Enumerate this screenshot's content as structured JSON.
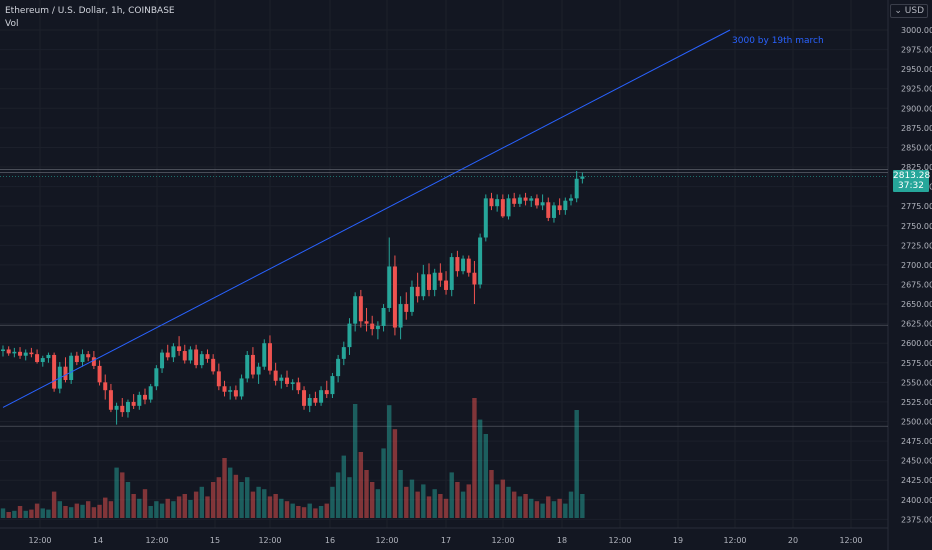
{
  "header": {
    "symbol_line": "Ethereum / U.S. Dollar, 1h, COINBASE",
    "volume_label": "Vol",
    "currency_button": "USD"
  },
  "annotation": {
    "text": "3000 by 19th march"
  },
  "price_tag": {
    "price": "2813.28",
    "countdown": "37:32"
  },
  "colors": {
    "up": "#26a69a",
    "down": "#ef5350",
    "trendline": "#2962ff",
    "background": "#131722"
  },
  "chart_data": {
    "type": "candlestick",
    "title": "Ethereum / U.S. Dollar, 1h, COINBASE",
    "timeframe": "1h",
    "y_axis": {
      "range": [
        2360,
        3025
      ],
      "ticks": [
        "3000.00",
        "2975.00",
        "2950.00",
        "2925.00",
        "2900.00",
        "2875.00",
        "2850.00",
        "2825.00",
        "2800.00",
        "2775.00",
        "2750.00",
        "2725.00",
        "2700.00",
        "2675.00",
        "2650.00",
        "2625.00",
        "2600.00",
        "2575.00",
        "2550.00",
        "2525.00",
        "2500.00",
        "2475.00",
        "2450.00",
        "2425.00",
        "2400.00",
        "2375.00"
      ]
    },
    "x_axis": {
      "tick_labels": [
        "12:00",
        "14",
        "12:00",
        "15",
        "12:00",
        "16",
        "12:00",
        "17",
        "12:00",
        "18",
        "12:00",
        "19",
        "12:00",
        "20",
        "12:00"
      ]
    },
    "horizontal_levels": [
      2822,
      2818,
      2623,
      2494
    ],
    "trendline": {
      "from": [
        0,
        2518
      ],
      "to": [
        128,
        3000
      ]
    },
    "volume_scale_max": 100,
    "candles": [
      {
        "o": 2590,
        "h": 2597,
        "l": 2583,
        "c": 2592,
        "v": 8
      },
      {
        "o": 2592,
        "h": 2596,
        "l": 2584,
        "c": 2587,
        "v": 5
      },
      {
        "o": 2587,
        "h": 2594,
        "l": 2582,
        "c": 2589,
        "v": 6
      },
      {
        "o": 2589,
        "h": 2595,
        "l": 2580,
        "c": 2584,
        "v": 10
      },
      {
        "o": 2584,
        "h": 2592,
        "l": 2578,
        "c": 2588,
        "v": 6
      },
      {
        "o": 2588,
        "h": 2594,
        "l": 2582,
        "c": 2586,
        "v": 7
      },
      {
        "o": 2586,
        "h": 2592,
        "l": 2574,
        "c": 2576,
        "v": 12
      },
      {
        "o": 2576,
        "h": 2584,
        "l": 2570,
        "c": 2581,
        "v": 8
      },
      {
        "o": 2581,
        "h": 2588,
        "l": 2575,
        "c": 2585,
        "v": 7
      },
      {
        "o": 2585,
        "h": 2588,
        "l": 2538,
        "c": 2542,
        "v": 22
      },
      {
        "o": 2542,
        "h": 2576,
        "l": 2536,
        "c": 2570,
        "v": 14
      },
      {
        "o": 2570,
        "h": 2582,
        "l": 2550,
        "c": 2553,
        "v": 10
      },
      {
        "o": 2553,
        "h": 2588,
        "l": 2548,
        "c": 2584,
        "v": 9
      },
      {
        "o": 2584,
        "h": 2589,
        "l": 2572,
        "c": 2576,
        "v": 12
      },
      {
        "o": 2576,
        "h": 2592,
        "l": 2570,
        "c": 2586,
        "v": 11
      },
      {
        "o": 2586,
        "h": 2590,
        "l": 2577,
        "c": 2582,
        "v": 14
      },
      {
        "o": 2582,
        "h": 2590,
        "l": 2567,
        "c": 2571,
        "v": 9
      },
      {
        "o": 2571,
        "h": 2578,
        "l": 2546,
        "c": 2550,
        "v": 11
      },
      {
        "o": 2550,
        "h": 2560,
        "l": 2528,
        "c": 2540,
        "v": 17
      },
      {
        "o": 2540,
        "h": 2548,
        "l": 2512,
        "c": 2515,
        "v": 14
      },
      {
        "o": 2515,
        "h": 2524,
        "l": 2496,
        "c": 2520,
        "v": 42
      },
      {
        "o": 2520,
        "h": 2530,
        "l": 2506,
        "c": 2512,
        "v": 38
      },
      {
        "o": 2512,
        "h": 2528,
        "l": 2505,
        "c": 2525,
        "v": 30
      },
      {
        "o": 2525,
        "h": 2535,
        "l": 2516,
        "c": 2520,
        "v": 20
      },
      {
        "o": 2520,
        "h": 2538,
        "l": 2515,
        "c": 2534,
        "v": 16
      },
      {
        "o": 2534,
        "h": 2542,
        "l": 2522,
        "c": 2528,
        "v": 24
      },
      {
        "o": 2528,
        "h": 2548,
        "l": 2524,
        "c": 2545,
        "v": 10
      },
      {
        "o": 2545,
        "h": 2572,
        "l": 2540,
        "c": 2568,
        "v": 14
      },
      {
        "o": 2568,
        "h": 2592,
        "l": 2562,
        "c": 2588,
        "v": 12
      },
      {
        "o": 2588,
        "h": 2598,
        "l": 2578,
        "c": 2582,
        "v": 16
      },
      {
        "o": 2582,
        "h": 2600,
        "l": 2576,
        "c": 2596,
        "v": 14
      },
      {
        "o": 2596,
        "h": 2609,
        "l": 2584,
        "c": 2590,
        "v": 18
      },
      {
        "o": 2590,
        "h": 2598,
        "l": 2574,
        "c": 2578,
        "v": 20
      },
      {
        "o": 2578,
        "h": 2596,
        "l": 2574,
        "c": 2592,
        "v": 15
      },
      {
        "o": 2592,
        "h": 2598,
        "l": 2568,
        "c": 2572,
        "v": 22
      },
      {
        "o": 2572,
        "h": 2590,
        "l": 2568,
        "c": 2586,
        "v": 26
      },
      {
        "o": 2586,
        "h": 2592,
        "l": 2575,
        "c": 2580,
        "v": 18
      },
      {
        "o": 2580,
        "h": 2586,
        "l": 2560,
        "c": 2564,
        "v": 30
      },
      {
        "o": 2564,
        "h": 2574,
        "l": 2540,
        "c": 2545,
        "v": 34
      },
      {
        "o": 2545,
        "h": 2552,
        "l": 2532,
        "c": 2538,
        "v": 50
      },
      {
        "o": 2538,
        "h": 2545,
        "l": 2528,
        "c": 2540,
        "v": 42
      },
      {
        "o": 2540,
        "h": 2546,
        "l": 2528,
        "c": 2532,
        "v": 36
      },
      {
        "o": 2532,
        "h": 2560,
        "l": 2528,
        "c": 2555,
        "v": 30
      },
      {
        "o": 2555,
        "h": 2590,
        "l": 2550,
        "c": 2585,
        "v": 34
      },
      {
        "o": 2585,
        "h": 2595,
        "l": 2555,
        "c": 2560,
        "v": 22
      },
      {
        "o": 2560,
        "h": 2575,
        "l": 2548,
        "c": 2570,
        "v": 26
      },
      {
        "o": 2570,
        "h": 2605,
        "l": 2566,
        "c": 2600,
        "v": 24
      },
      {
        "o": 2600,
        "h": 2610,
        "l": 2560,
        "c": 2565,
        "v": 18
      },
      {
        "o": 2565,
        "h": 2575,
        "l": 2546,
        "c": 2552,
        "v": 20
      },
      {
        "o": 2552,
        "h": 2560,
        "l": 2542,
        "c": 2556,
        "v": 16
      },
      {
        "o": 2556,
        "h": 2565,
        "l": 2544,
        "c": 2548,
        "v": 14
      },
      {
        "o": 2548,
        "h": 2554,
        "l": 2540,
        "c": 2550,
        "v": 12
      },
      {
        "o": 2550,
        "h": 2556,
        "l": 2535,
        "c": 2540,
        "v": 10
      },
      {
        "o": 2540,
        "h": 2545,
        "l": 2515,
        "c": 2520,
        "v": 9
      },
      {
        "o": 2520,
        "h": 2535,
        "l": 2512,
        "c": 2530,
        "v": 12
      },
      {
        "o": 2530,
        "h": 2538,
        "l": 2520,
        "c": 2524,
        "v": 8
      },
      {
        "o": 2524,
        "h": 2545,
        "l": 2520,
        "c": 2540,
        "v": 10
      },
      {
        "o": 2540,
        "h": 2552,
        "l": 2530,
        "c": 2535,
        "v": 12
      },
      {
        "o": 2535,
        "h": 2562,
        "l": 2530,
        "c": 2558,
        "v": 26
      },
      {
        "o": 2558,
        "h": 2585,
        "l": 2550,
        "c": 2580,
        "v": 38
      },
      {
        "o": 2580,
        "h": 2602,
        "l": 2572,
        "c": 2595,
        "v": 52
      },
      {
        "o": 2595,
        "h": 2632,
        "l": 2585,
        "c": 2625,
        "v": 34
      },
      {
        "o": 2625,
        "h": 2665,
        "l": 2615,
        "c": 2660,
        "v": 95
      },
      {
        "o": 2660,
        "h": 2668,
        "l": 2620,
        "c": 2628,
        "v": 55
      },
      {
        "o": 2628,
        "h": 2645,
        "l": 2615,
        "c": 2625,
        "v": 40
      },
      {
        "o": 2625,
        "h": 2635,
        "l": 2610,
        "c": 2618,
        "v": 30
      },
      {
        "o": 2618,
        "h": 2628,
        "l": 2605,
        "c": 2622,
        "v": 24
      },
      {
        "o": 2622,
        "h": 2650,
        "l": 2615,
        "c": 2645,
        "v": 58
      },
      {
        "o": 2645,
        "h": 2735,
        "l": 2640,
        "c": 2698,
        "v": 94
      },
      {
        "o": 2698,
        "h": 2712,
        "l": 2610,
        "c": 2620,
        "v": 74
      },
      {
        "o": 2620,
        "h": 2660,
        "l": 2605,
        "c": 2650,
        "v": 40
      },
      {
        "o": 2650,
        "h": 2665,
        "l": 2630,
        "c": 2640,
        "v": 26
      },
      {
        "o": 2640,
        "h": 2680,
        "l": 2635,
        "c": 2672,
        "v": 32
      },
      {
        "o": 2672,
        "h": 2690,
        "l": 2652,
        "c": 2660,
        "v": 22
      },
      {
        "o": 2660,
        "h": 2700,
        "l": 2655,
        "c": 2688,
        "v": 28
      },
      {
        "o": 2688,
        "h": 2702,
        "l": 2660,
        "c": 2668,
        "v": 18
      },
      {
        "o": 2668,
        "h": 2695,
        "l": 2660,
        "c": 2690,
        "v": 24
      },
      {
        "o": 2690,
        "h": 2702,
        "l": 2672,
        "c": 2680,
        "v": 20
      },
      {
        "o": 2680,
        "h": 2692,
        "l": 2662,
        "c": 2668,
        "v": 16
      },
      {
        "o": 2668,
        "h": 2715,
        "l": 2660,
        "c": 2710,
        "v": 38
      },
      {
        "o": 2710,
        "h": 2718,
        "l": 2685,
        "c": 2692,
        "v": 30
      },
      {
        "o": 2692,
        "h": 2712,
        "l": 2688,
        "c": 2708,
        "v": 22
      },
      {
        "o": 2708,
        "h": 2712,
        "l": 2685,
        "c": 2690,
        "v": 28
      },
      {
        "o": 2690,
        "h": 2705,
        "l": 2650,
        "c": 2675,
        "v": 100
      },
      {
        "o": 2675,
        "h": 2740,
        "l": 2670,
        "c": 2735,
        "v": 82
      },
      {
        "o": 2735,
        "h": 2790,
        "l": 2730,
        "c": 2785,
        "v": 70
      },
      {
        "o": 2785,
        "h": 2792,
        "l": 2770,
        "c": 2775,
        "v": 40
      },
      {
        "o": 2775,
        "h": 2790,
        "l": 2768,
        "c": 2784,
        "v": 28
      },
      {
        "o": 2784,
        "h": 2790,
        "l": 2760,
        "c": 2762,
        "v": 32
      },
      {
        "o": 2762,
        "h": 2790,
        "l": 2758,
        "c": 2785,
        "v": 26
      },
      {
        "o": 2785,
        "h": 2792,
        "l": 2774,
        "c": 2778,
        "v": 22
      },
      {
        "o": 2778,
        "h": 2790,
        "l": 2774,
        "c": 2786,
        "v": 18
      },
      {
        "o": 2786,
        "h": 2792,
        "l": 2776,
        "c": 2782,
        "v": 20
      },
      {
        "o": 2782,
        "h": 2788,
        "l": 2774,
        "c": 2785,
        "v": 16
      },
      {
        "o": 2785,
        "h": 2790,
        "l": 2772,
        "c": 2776,
        "v": 14
      },
      {
        "o": 2776,
        "h": 2790,
        "l": 2770,
        "c": 2780,
        "v": 12
      },
      {
        "o": 2780,
        "h": 2786,
        "l": 2756,
        "c": 2760,
        "v": 18
      },
      {
        "o": 2760,
        "h": 2780,
        "l": 2754,
        "c": 2776,
        "v": 14
      },
      {
        "o": 2776,
        "h": 2785,
        "l": 2764,
        "c": 2770,
        "v": 16
      },
      {
        "o": 2770,
        "h": 2786,
        "l": 2764,
        "c": 2782,
        "v": 12
      },
      {
        "o": 2782,
        "h": 2790,
        "l": 2776,
        "c": 2785,
        "v": 22
      },
      {
        "o": 2785,
        "h": 2820,
        "l": 2780,
        "c": 2810,
        "v": 90
      },
      {
        "o": 2810,
        "h": 2818,
        "l": 2804,
        "c": 2813,
        "v": 20
      }
    ]
  }
}
